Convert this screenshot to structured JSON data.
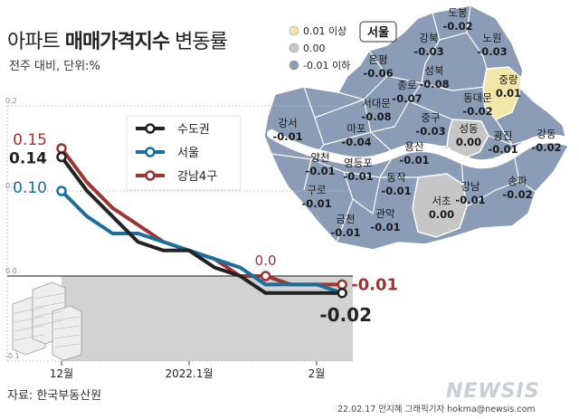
{
  "title_plain": "아파트 ",
  "title_bold": "매매가격지수",
  "title_tail": " 변동률",
  "subtitle": "전주 대비, 단위:%",
  "source": "자료: 한국부동산원",
  "credit": "22.02.17 안지혜 그래픽기자 hokma@newsis.com",
  "logo": "NEWSIS",
  "colors": {
    "seoul_capital": "#222222",
    "seoul": "#1a6f9e",
    "gangnam4": "#9e3535",
    "map_blue": "#8a9cb6",
    "map_gray": "#c6c6c6",
    "map_yellow": "#f2e6a8",
    "shade": "#d2d2d2"
  },
  "chart_data": {
    "type": "line",
    "ylim": [
      -0.1,
      0.2
    ],
    "yticks": [
      "0.2",
      "0.1",
      "0.0",
      "-0.1"
    ],
    "xtick_labels": [
      "12월",
      "2022.1월",
      "2월"
    ],
    "xtick_index": [
      0,
      5,
      10
    ],
    "n_points": 12,
    "series": [
      {
        "name": "수도권",
        "color": "#222222",
        "values": [
          0.14,
          0.1,
          0.07,
          0.04,
          0.03,
          0.03,
          0.01,
          0.0,
          -0.02,
          -0.02,
          -0.02,
          -0.02
        ],
        "marker_index": [
          0,
          11
        ],
        "start_label": "0.14",
        "end_label": "-0.02"
      },
      {
        "name": "서울",
        "color": "#1a6f9e",
        "values": [
          0.1,
          0.07,
          0.05,
          0.05,
          0.04,
          0.03,
          0.02,
          0.01,
          -0.01,
          -0.01,
          -0.01,
          -0.02
        ],
        "marker_index": [
          0
        ],
        "start_label": "0.10",
        "end_label": ""
      },
      {
        "name": "강남4구",
        "color": "#9e3535",
        "values": [
          0.15,
          0.11,
          0.08,
          0.06,
          0.04,
          0.03,
          0.02,
          0.0,
          0.0,
          -0.01,
          -0.01,
          -0.01
        ],
        "marker_index": [
          0,
          8,
          11
        ],
        "start_label": "0.15",
        "mid_label": "0.0",
        "end_label": "-0.01"
      }
    ]
  },
  "map": {
    "legend": [
      {
        "label": "0.01 이상",
        "color": "#f2e6a8"
      },
      {
        "label": "0.00",
        "color": "#c6c6c6"
      },
      {
        "label": "-0.01 이하",
        "color": "#8a9cb6"
      }
    ],
    "region_label": "서울",
    "districts": [
      {
        "name": "도봉",
        "value": "-0.02"
      },
      {
        "name": "강북",
        "value": "-0.03"
      },
      {
        "name": "노원",
        "value": "-0.03"
      },
      {
        "name": "은평",
        "value": "-0.06"
      },
      {
        "name": "성북",
        "value": "-0.08"
      },
      {
        "name": "종로",
        "value": "-0.07"
      },
      {
        "name": "중랑",
        "value": "0.01"
      },
      {
        "name": "동대문",
        "value": "-0.02"
      },
      {
        "name": "서대문",
        "value": "-0.08"
      },
      {
        "name": "중구",
        "value": "-0.03"
      },
      {
        "name": "강서",
        "value": "-0.01"
      },
      {
        "name": "마포",
        "value": "-0.04"
      },
      {
        "name": "용산",
        "value": "-0.01"
      },
      {
        "name": "성동",
        "value": "0.00"
      },
      {
        "name": "광진",
        "value": "-0.01"
      },
      {
        "name": "강동",
        "value": "-0.02"
      },
      {
        "name": "양천",
        "value": "-0.01"
      },
      {
        "name": "영등포",
        "value": "-0.01"
      },
      {
        "name": "동작",
        "value": "-0.01"
      },
      {
        "name": "구로",
        "value": "-0.01"
      },
      {
        "name": "강남",
        "value": "-0.01"
      },
      {
        "name": "송파",
        "value": "-0.02"
      },
      {
        "name": "금천",
        "value": "-0.01"
      },
      {
        "name": "관악",
        "value": "-0.01"
      },
      {
        "name": "서초",
        "value": "0.00"
      }
    ]
  }
}
